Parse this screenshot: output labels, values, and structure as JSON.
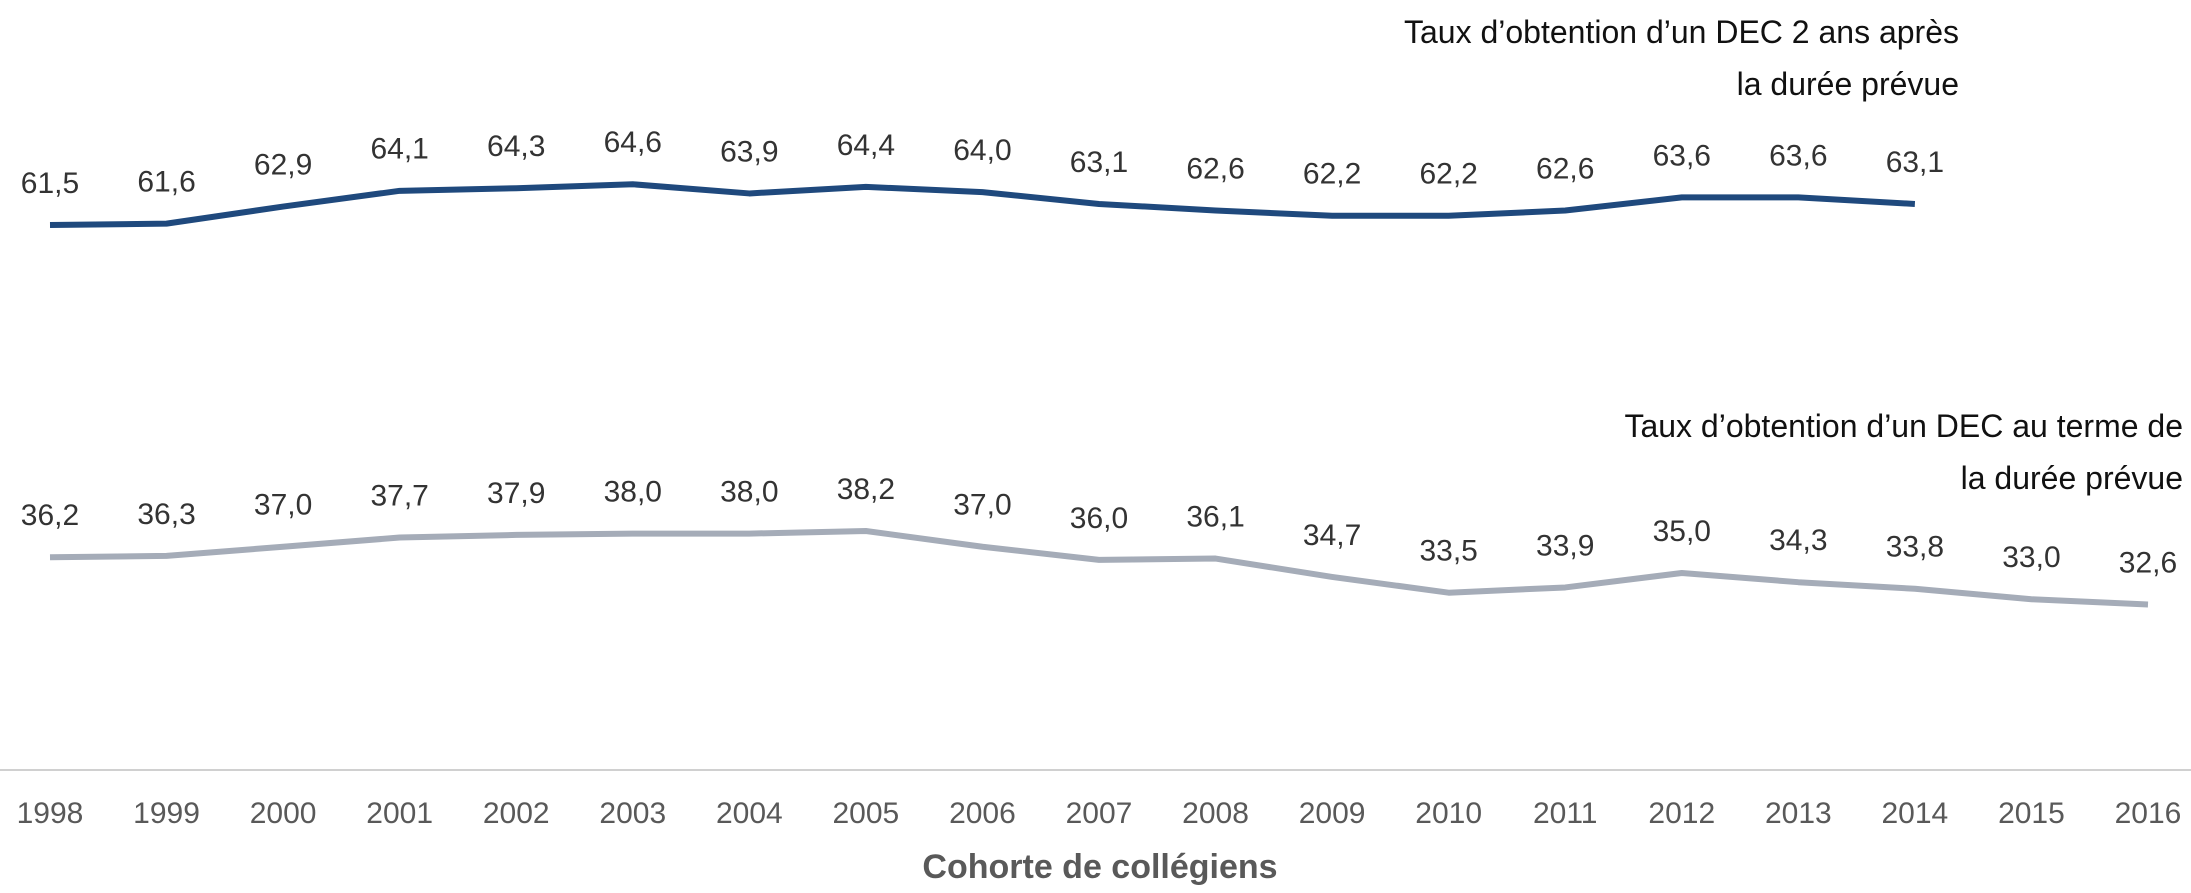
{
  "chart_data": {
    "type": "line",
    "x_label": "Cohorte de collégiens",
    "categories": [
      "1998",
      "1999",
      "2000",
      "2001",
      "2002",
      "2003",
      "2004",
      "2005",
      "2006",
      "2007",
      "2008",
      "2009",
      "2010",
      "2011",
      "2012",
      "2013",
      "2014",
      "2015",
      "2016"
    ],
    "series": [
      {
        "name": "Taux d’obtention d’un DEC 2 ans après la durée prévue",
        "color": "#1f497d",
        "values": [
          61.5,
          61.6,
          62.9,
          64.1,
          64.3,
          64.6,
          63.9,
          64.4,
          64.0,
          63.1,
          62.6,
          62.2,
          62.2,
          62.6,
          63.6,
          63.6,
          63.1,
          null,
          null
        ],
        "value_labels": [
          "61,5",
          "61,6",
          "62,9",
          "64,1",
          "64,3",
          "64,6",
          "63,9",
          "64,4",
          "64,0",
          "63,1",
          "62,6",
          "62,2",
          "62,2",
          "62,6",
          "63,6",
          "63,6",
          "63,1",
          null,
          null
        ]
      },
      {
        "name": "Taux d’obtention d’un DEC au terme de la durée prévue",
        "color": "#a5acb8",
        "values": [
          36.2,
          36.3,
          37.0,
          37.7,
          37.9,
          38.0,
          38.0,
          38.2,
          37.0,
          36.0,
          36.1,
          34.7,
          33.5,
          33.9,
          35.0,
          34.3,
          33.8,
          33.0,
          32.6
        ],
        "value_labels": [
          "36,2",
          "36,3",
          "37,0",
          "37,7",
          "37,9",
          "38,0",
          "38,0",
          "38,2",
          "37,0",
          "36,0",
          "36,1",
          "34,7",
          "33,5",
          "33,9",
          "35,0",
          "34,3",
          "33,8",
          "33,0",
          "32,6"
        ]
      }
    ],
    "ylim": [
      20,
      80
    ]
  }
}
